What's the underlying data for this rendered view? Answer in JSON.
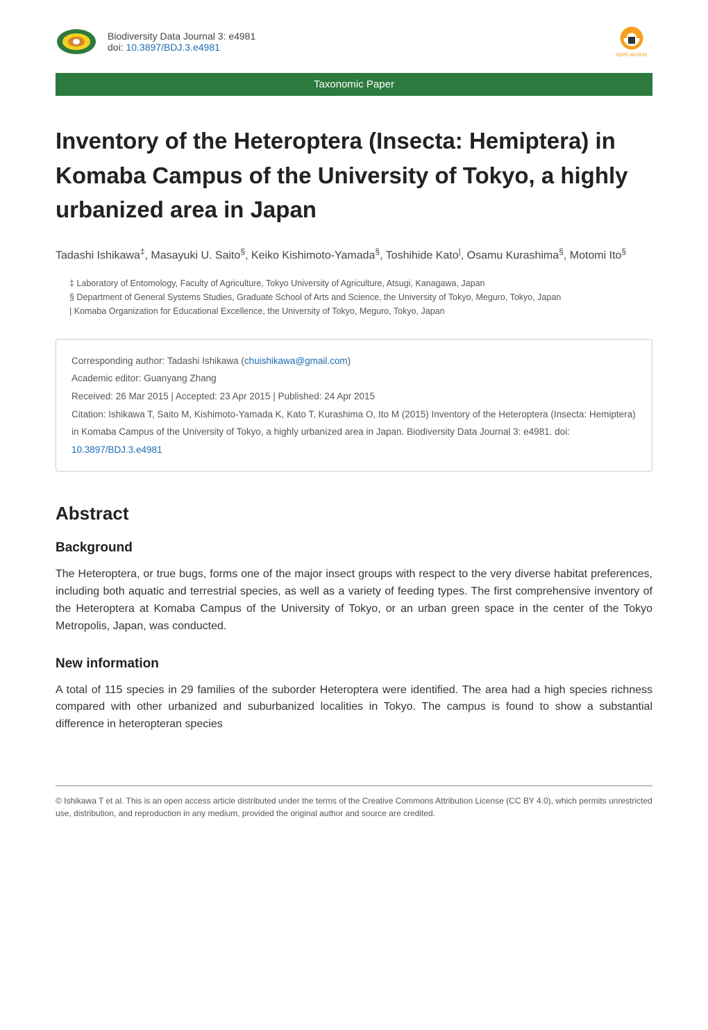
{
  "header": {
    "journal_line": "Biodiversity Data Journal 3: e4981",
    "doi_label": "doi: ",
    "doi_link": "10.3897/BDJ.3.e4981",
    "open_access_label": "open access",
    "logo_colors": {
      "outer": "#2d7a3e",
      "inner1": "#f5d020",
      "inner2": "#d4842a",
      "center": "#ffffff"
    },
    "oa_colors": {
      "ring": "#f5a020",
      "lock": "#333333"
    }
  },
  "paper_type": "Taxonomic Paper",
  "paper_type_bg": "#2d7a3e",
  "title": "Inventory of the Heteroptera (Insecta: Hemiptera) in Komaba Campus of the University of Tokyo, a highly urbanized area in Japan",
  "authors_html": "Tadashi Ishikawa<span class='sup'>‡</span>, Masayuki U. Saito<span class='sup'>§</span>, Keiko Kishimoto-Yamada<span class='sup'>§</span>, Toshihide Kato<span class='sup'>|</span>, Osamu Kurashima<span class='sup'>§</span>, Motomi Ito<span class='sup'>§</span>",
  "affiliations": [
    "‡ Laboratory of Entomology, Faculty of Agriculture, Tokyo University of Agriculture, Atsugi, Kanagawa, Japan",
    "§ Department of General Systems Studies, Graduate School of Arts and Science, the University of Tokyo, Meguro, Tokyo, Japan",
    "| Komaba Organization for Educational Excellence, the University of Tokyo, Meguro, Tokyo, Japan"
  ],
  "meta": {
    "corresponding_label": "Corresponding author: Tadashi Ishikawa (",
    "corresponding_email": "chuishikawa@gmail.com",
    "corresponding_close": ")",
    "editor": "Academic editor: Guanyang Zhang",
    "dates": "Received: 26 Mar 2015 | Accepted: 23 Apr 2015 | Published: 24 Apr 2015",
    "citation": "Citation: Ishikawa T, Saito M, Kishimoto-Yamada K, Kato T, Kurashima O, Ito M (2015) Inventory of the Heteroptera (Insecta: Hemiptera) in Komaba Campus of the University of Tokyo, a highly urbanized area in Japan. Biodiversity Data Journal 3: e4981. doi: ",
    "citation_doi": "10.3897/BDJ.3.e4981"
  },
  "abstract_heading": "Abstract",
  "background_heading": "Background",
  "background_text": "The Heteroptera, or true bugs, forms one of the major insect groups with respect to the very diverse habitat preferences, including both aquatic and terrestrial species, as well as a variety of feeding types. The first comprehensive inventory of the Heteroptera at Komaba Campus of the University of Tokyo, or an urban green space in the center of the Tokyo Metropolis, Japan, was conducted.",
  "newinfo_heading": "New information",
  "newinfo_text": "A total of 115 species in 29 families of the suborder Heteroptera were identified. The area had a high species richness compared with other urbanized and suburbanized localities in Tokyo. The campus is found to show a substantial difference in heteropteran species",
  "footer": "© Ishikawa T et al. This is an open access article distributed under the terms of the Creative Commons Attribution License (CC BY 4.0), which permits unrestricted use, distribution, and reproduction in any medium, provided the original author and source are credited."
}
